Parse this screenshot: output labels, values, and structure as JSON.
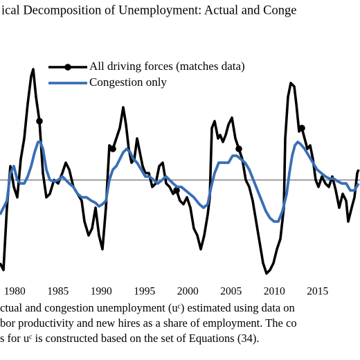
{
  "chart_data": {
    "type": "line",
    "title": "ical Decomposition of Unemployment: Actual and Conge",
    "caption": [
      "ctual and congestion unemployment (uᶜ) estimated using data on",
      "bor productivity and new hires as a share of employment.  The co",
      "s for uᶜ is constructed based on the set of Equations (34)."
    ],
    "xlim": [
      1978.3,
      2019.9
    ],
    "xticks": [
      1980,
      1985,
      1990,
      1995,
      2000,
      2005,
      2010,
      2015
    ],
    "ylim": [
      -1.5,
      2.6
    ],
    "hline": 0,
    "legend": "top",
    "series": [
      {
        "name": "All driving forces (matches data)",
        "color": "#000000",
        "marker": "o",
        "marker_every": 20,
        "x": [
          1978.3,
          1978.7,
          1979.1,
          1979.5,
          1979.9,
          1980.3,
          1980.7,
          1981.1,
          1981.5,
          1981.9,
          1982.14,
          1982.46,
          1982.86,
          1983.26,
          1983.66,
          1984.06,
          1984.54,
          1985.02,
          1985.5,
          1985.9,
          1986.3,
          1986.78,
          1987.26,
          1987.74,
          1988.06,
          1988.54,
          1988.94,
          1989.34,
          1989.74,
          1990.14,
          1990.54,
          1990.94,
          1991.34,
          1991.74,
          1992.14,
          1992.54,
          1992.86,
          1993.18,
          1993.5,
          1993.82,
          1994.14,
          1994.46,
          1994.78,
          1995.1,
          1995.5,
          1995.9,
          1996.3,
          1996.7,
          1997.1,
          1997.5,
          1997.9,
          1998.3,
          1998.7,
          1999.1,
          1999.5,
          1999.9,
          2000.3,
          2000.7,
          2001.1,
          2001.5,
          2001.9,
          2002.3,
          2002.54,
          2002.78,
          2003.1,
          2003.5,
          2003.74,
          2004.06,
          2004.38,
          2004.7,
          2005.1,
          2005.5,
          2005.9,
          2006.3,
          2006.7,
          2007.1,
          2007.5,
          2007.9,
          2008.3,
          2008.7,
          2009.1,
          2009.5,
          2009.9,
          2010.3,
          2010.7,
          2011.1,
          2011.26,
          2011.58,
          2011.9,
          2012.3,
          2012.54,
          2012.86,
          2013.18,
          2013.5,
          2013.82,
          2014.14,
          2014.46,
          2014.78,
          2015.1,
          2015.5,
          2015.9,
          2016.3,
          2016.7,
          2017.1,
          2017.5,
          2017.9,
          2018.3,
          2018.54,
          2018.94,
          2019.26,
          2019.58,
          2019.74
        ],
        "values": [
          -1.2,
          -1.3,
          -0.4,
          0.2,
          -0.1,
          -0.25,
          0.3,
          0.6,
          1.1,
          1.5,
          1.6,
          1.2,
          0.85,
          0.1,
          -0.25,
          -0.2,
          0,
          -0.05,
          0.1,
          0.25,
          0.15,
          -0.1,
          -0.2,
          -0.3,
          -0.6,
          -0.8,
          -0.7,
          -0.4,
          -0.8,
          -1.0,
          -0.4,
          0.5,
          0.45,
          0.6,
          0.75,
          1.05,
          0.8,
          0.45,
          0.25,
          0.3,
          0.6,
          0.4,
          0.2,
          0.1,
          0.1,
          -0.1,
          -0.05,
          0.2,
          0.25,
          -0.05,
          -0.1,
          -0.2,
          -0.15,
          -0.3,
          -0.35,
          -0.25,
          -0.4,
          -0.7,
          -0.8,
          -1.0,
          -0.8,
          -0.5,
          -0.25,
          0.75,
          0.85,
          0.6,
          0.65,
          0.55,
          0.65,
          0.8,
          0.9,
          0.6,
          0.45,
          0.3,
          0,
          -0.1,
          -0.3,
          -0.6,
          -0.9,
          -1.2,
          -1.35,
          -1.3,
          -1.2,
          -1.0,
          -0.85,
          -0.4,
          0.6,
          1.2,
          1.4,
          1.35,
          1.1,
          0.7,
          0.75,
          0.6,
          0.45,
          0.5,
          0.3,
          0,
          -0.1,
          0.05,
          -0.05,
          -0.1,
          0.05,
          -0.15,
          -0.4,
          -0.2,
          -0.3,
          -0.6,
          -0.4,
          -0.25,
          0.1,
          0.15
        ]
      },
      {
        "name": "Congestion only",
        "color": "#3a6eb5",
        "x": [
          1978.3,
          1978.7,
          1979.1,
          1979.5,
          1979.9,
          1980.3,
          1980.7,
          1981.1,
          1981.5,
          1981.9,
          1982.3,
          1982.7,
          1982.94,
          1983.26,
          1983.66,
          1984.06,
          1984.54,
          1985.02,
          1985.5,
          1985.9,
          1986.3,
          1986.78,
          1987.26,
          1987.74,
          1988.3,
          1988.86,
          1989.34,
          1989.74,
          1990.14,
          1990.54,
          1990.94,
          1991.34,
          1991.74,
          1992.14,
          1992.54,
          1992.94,
          1993.34,
          1993.74,
          1994.14,
          1994.62,
          1995.1,
          1995.58,
          1996.06,
          1996.54,
          1997.02,
          1997.5,
          1997.9,
          1998.3,
          1998.78,
          1999.26,
          1999.74,
          2000.22,
          2000.7,
          2001.34,
          2001.82,
          2002.3,
          2002.7,
          2003.1,
          2003.58,
          2004.06,
          2004.7,
          2005.18,
          2005.66,
          2006.14,
          2006.62,
          2007.1,
          2007.58,
          2008.06,
          2008.54,
          2009.02,
          2009.5,
          2009.98,
          2010.46,
          2010.94,
          2011.42,
          2011.74,
          2012.06,
          2012.38,
          2012.7,
          2013.02,
          2013.5,
          2013.98,
          2014.46,
          2014.94,
          2015.42,
          2015.9,
          2016.38,
          2016.86,
          2017.34,
          2017.82,
          2018.3,
          2018.78,
          2019.26,
          2019.74
        ],
        "values": [
          -0.5,
          -0.4,
          -0.3,
          0.1,
          0.2,
          0,
          -0.05,
          -0.05,
          0.05,
          0.2,
          0.4,
          0.55,
          0.55,
          0.45,
          0.15,
          0,
          -0.02,
          0,
          0.05,
          0,
          -0.05,
          -0.1,
          -0.2,
          -0.25,
          -0.25,
          -0.3,
          -0.33,
          -0.38,
          -0.35,
          -0.3,
          0,
          0.15,
          0.2,
          0.3,
          0.4,
          0.45,
          0.4,
          0.3,
          0.25,
          0.15,
          0.05,
          0.05,
          0,
          -0.05,
          0,
          0.05,
          0,
          -0.05,
          -0.1,
          -0.1,
          -0.15,
          -0.2,
          -0.25,
          -0.35,
          -0.4,
          -0.35,
          -0.1,
          0.1,
          0.25,
          0.25,
          0.25,
          0.35,
          0.35,
          0.3,
          0.25,
          0.15,
          0,
          -0.15,
          -0.3,
          -0.45,
          -0.55,
          -0.6,
          -0.6,
          -0.45,
          -0.2,
          0.1,
          0.35,
          0.5,
          0.55,
          0.52,
          0.45,
          0.35,
          0.25,
          0.15,
          0.1,
          0.05,
          0.02,
          0.02,
          -0.02,
          -0.05,
          -0.05,
          -0.15,
          -0.15,
          -0.05
        ]
      }
    ]
  }
}
